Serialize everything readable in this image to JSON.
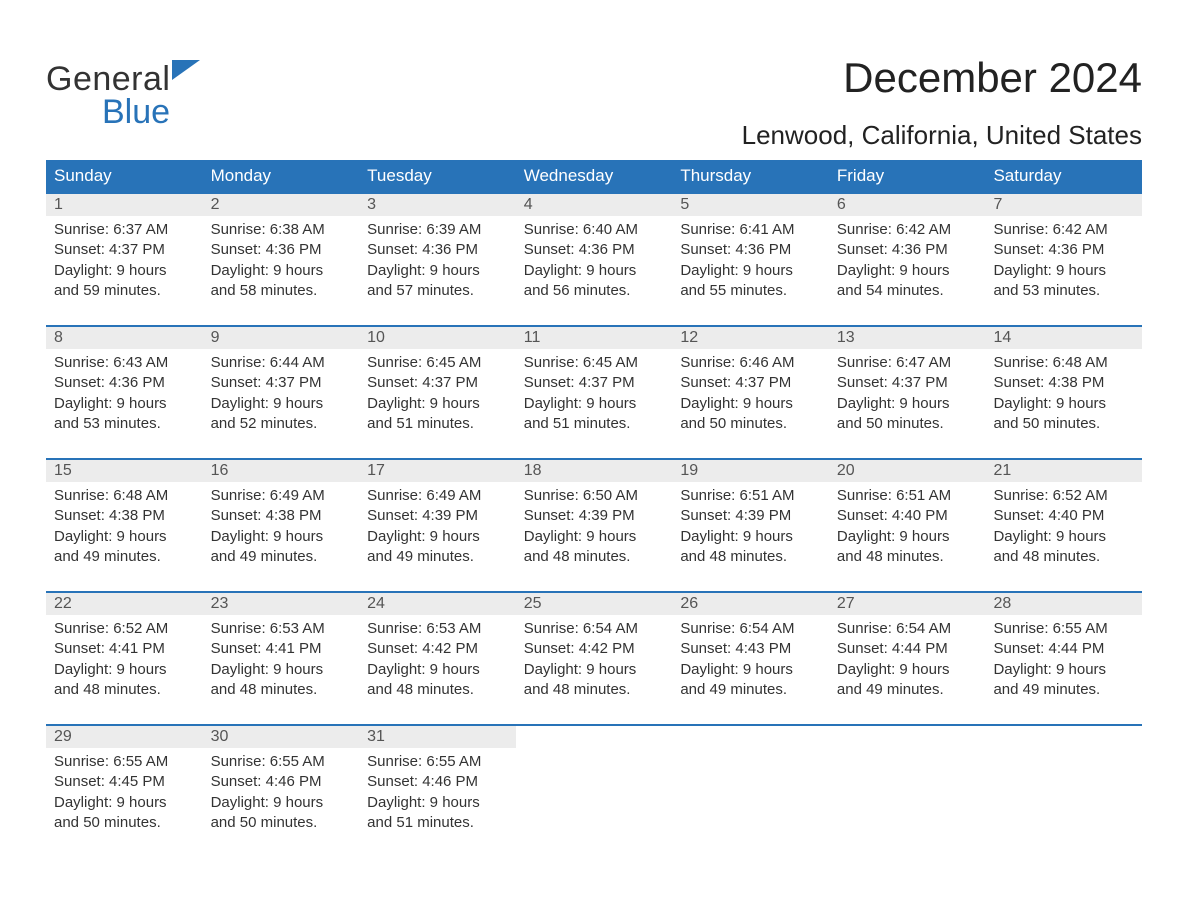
{
  "logo": {
    "general": "General",
    "blue": "Blue"
  },
  "header": {
    "month_title": "December 2024",
    "location": "Lenwood, California, United States"
  },
  "day_names": [
    "Sunday",
    "Monday",
    "Tuesday",
    "Wednesday",
    "Thursday",
    "Friday",
    "Saturday"
  ],
  "colors": {
    "accent": "#2873b8",
    "row_bg": "#ececec",
    "text": "#333333",
    "bg": "#ffffff"
  },
  "weeks": [
    [
      {
        "num": "1",
        "sunrise": "Sunrise: 6:37 AM",
        "sunset": "Sunset: 4:37 PM",
        "d1": "Daylight: 9 hours",
        "d2": "and 59 minutes."
      },
      {
        "num": "2",
        "sunrise": "Sunrise: 6:38 AM",
        "sunset": "Sunset: 4:36 PM",
        "d1": "Daylight: 9 hours",
        "d2": "and 58 minutes."
      },
      {
        "num": "3",
        "sunrise": "Sunrise: 6:39 AM",
        "sunset": "Sunset: 4:36 PM",
        "d1": "Daylight: 9 hours",
        "d2": "and 57 minutes."
      },
      {
        "num": "4",
        "sunrise": "Sunrise: 6:40 AM",
        "sunset": "Sunset: 4:36 PM",
        "d1": "Daylight: 9 hours",
        "d2": "and 56 minutes."
      },
      {
        "num": "5",
        "sunrise": "Sunrise: 6:41 AM",
        "sunset": "Sunset: 4:36 PM",
        "d1": "Daylight: 9 hours",
        "d2": "and 55 minutes."
      },
      {
        "num": "6",
        "sunrise": "Sunrise: 6:42 AM",
        "sunset": "Sunset: 4:36 PM",
        "d1": "Daylight: 9 hours",
        "d2": "and 54 minutes."
      },
      {
        "num": "7",
        "sunrise": "Sunrise: 6:42 AM",
        "sunset": "Sunset: 4:36 PM",
        "d1": "Daylight: 9 hours",
        "d2": "and 53 minutes."
      }
    ],
    [
      {
        "num": "8",
        "sunrise": "Sunrise: 6:43 AM",
        "sunset": "Sunset: 4:36 PM",
        "d1": "Daylight: 9 hours",
        "d2": "and 53 minutes."
      },
      {
        "num": "9",
        "sunrise": "Sunrise: 6:44 AM",
        "sunset": "Sunset: 4:37 PM",
        "d1": "Daylight: 9 hours",
        "d2": "and 52 minutes."
      },
      {
        "num": "10",
        "sunrise": "Sunrise: 6:45 AM",
        "sunset": "Sunset: 4:37 PM",
        "d1": "Daylight: 9 hours",
        "d2": "and 51 minutes."
      },
      {
        "num": "11",
        "sunrise": "Sunrise: 6:45 AM",
        "sunset": "Sunset: 4:37 PM",
        "d1": "Daylight: 9 hours",
        "d2": "and 51 minutes."
      },
      {
        "num": "12",
        "sunrise": "Sunrise: 6:46 AM",
        "sunset": "Sunset: 4:37 PM",
        "d1": "Daylight: 9 hours",
        "d2": "and 50 minutes."
      },
      {
        "num": "13",
        "sunrise": "Sunrise: 6:47 AM",
        "sunset": "Sunset: 4:37 PM",
        "d1": "Daylight: 9 hours",
        "d2": "and 50 minutes."
      },
      {
        "num": "14",
        "sunrise": "Sunrise: 6:48 AM",
        "sunset": "Sunset: 4:38 PM",
        "d1": "Daylight: 9 hours",
        "d2": "and 50 minutes."
      }
    ],
    [
      {
        "num": "15",
        "sunrise": "Sunrise: 6:48 AM",
        "sunset": "Sunset: 4:38 PM",
        "d1": "Daylight: 9 hours",
        "d2": "and 49 minutes."
      },
      {
        "num": "16",
        "sunrise": "Sunrise: 6:49 AM",
        "sunset": "Sunset: 4:38 PM",
        "d1": "Daylight: 9 hours",
        "d2": "and 49 minutes."
      },
      {
        "num": "17",
        "sunrise": "Sunrise: 6:49 AM",
        "sunset": "Sunset: 4:39 PM",
        "d1": "Daylight: 9 hours",
        "d2": "and 49 minutes."
      },
      {
        "num": "18",
        "sunrise": "Sunrise: 6:50 AM",
        "sunset": "Sunset: 4:39 PM",
        "d1": "Daylight: 9 hours",
        "d2": "and 48 minutes."
      },
      {
        "num": "19",
        "sunrise": "Sunrise: 6:51 AM",
        "sunset": "Sunset: 4:39 PM",
        "d1": "Daylight: 9 hours",
        "d2": "and 48 minutes."
      },
      {
        "num": "20",
        "sunrise": "Sunrise: 6:51 AM",
        "sunset": "Sunset: 4:40 PM",
        "d1": "Daylight: 9 hours",
        "d2": "and 48 minutes."
      },
      {
        "num": "21",
        "sunrise": "Sunrise: 6:52 AM",
        "sunset": "Sunset: 4:40 PM",
        "d1": "Daylight: 9 hours",
        "d2": "and 48 minutes."
      }
    ],
    [
      {
        "num": "22",
        "sunrise": "Sunrise: 6:52 AM",
        "sunset": "Sunset: 4:41 PM",
        "d1": "Daylight: 9 hours",
        "d2": "and 48 minutes."
      },
      {
        "num": "23",
        "sunrise": "Sunrise: 6:53 AM",
        "sunset": "Sunset: 4:41 PM",
        "d1": "Daylight: 9 hours",
        "d2": "and 48 minutes."
      },
      {
        "num": "24",
        "sunrise": "Sunrise: 6:53 AM",
        "sunset": "Sunset: 4:42 PM",
        "d1": "Daylight: 9 hours",
        "d2": "and 48 minutes."
      },
      {
        "num": "25",
        "sunrise": "Sunrise: 6:54 AM",
        "sunset": "Sunset: 4:42 PM",
        "d1": "Daylight: 9 hours",
        "d2": "and 48 minutes."
      },
      {
        "num": "26",
        "sunrise": "Sunrise: 6:54 AM",
        "sunset": "Sunset: 4:43 PM",
        "d1": "Daylight: 9 hours",
        "d2": "and 49 minutes."
      },
      {
        "num": "27",
        "sunrise": "Sunrise: 6:54 AM",
        "sunset": "Sunset: 4:44 PM",
        "d1": "Daylight: 9 hours",
        "d2": "and 49 minutes."
      },
      {
        "num": "28",
        "sunrise": "Sunrise: 6:55 AM",
        "sunset": "Sunset: 4:44 PM",
        "d1": "Daylight: 9 hours",
        "d2": "and 49 minutes."
      }
    ],
    [
      {
        "num": "29",
        "sunrise": "Sunrise: 6:55 AM",
        "sunset": "Sunset: 4:45 PM",
        "d1": "Daylight: 9 hours",
        "d2": "and 50 minutes."
      },
      {
        "num": "30",
        "sunrise": "Sunrise: 6:55 AM",
        "sunset": "Sunset: 4:46 PM",
        "d1": "Daylight: 9 hours",
        "d2": "and 50 minutes."
      },
      {
        "num": "31",
        "sunrise": "Sunrise: 6:55 AM",
        "sunset": "Sunset: 4:46 PM",
        "d1": "Daylight: 9 hours",
        "d2": "and 51 minutes."
      },
      {
        "empty": true
      },
      {
        "empty": true
      },
      {
        "empty": true
      },
      {
        "empty": true
      }
    ]
  ]
}
